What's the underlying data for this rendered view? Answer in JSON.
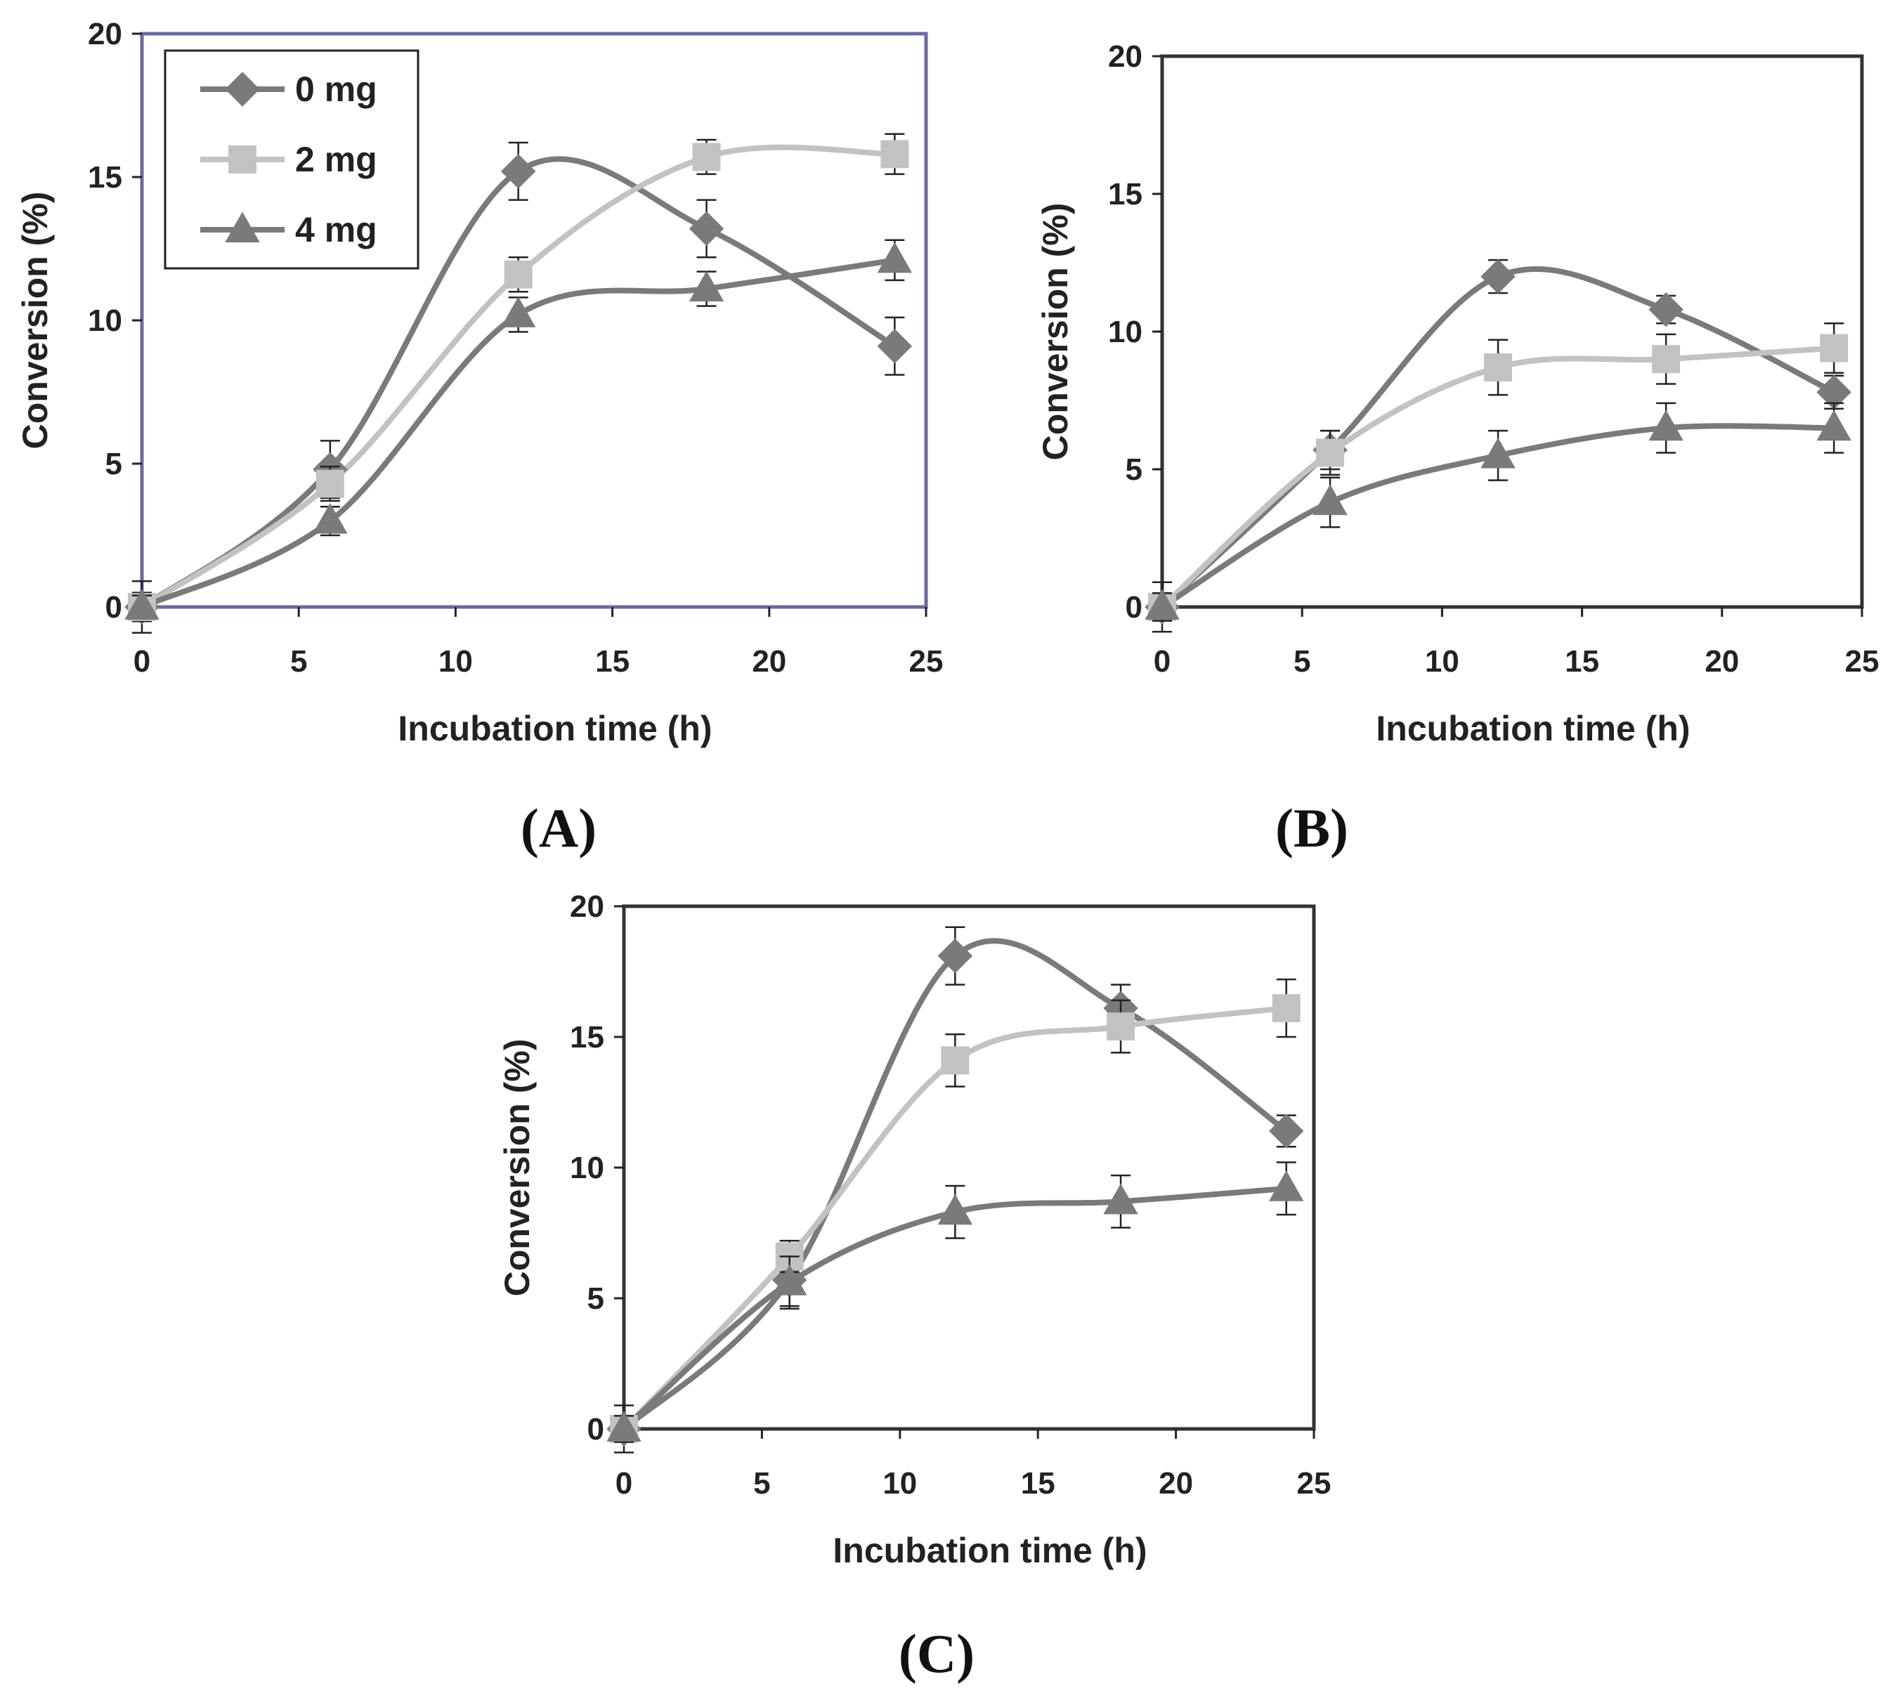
{
  "series_styles": [
    {
      "name": "0 mg",
      "marker": "diamond",
      "color": "#7a7a7a"
    },
    {
      "name": "2 mg",
      "marker": "square",
      "color": "#c2c2c2"
    },
    {
      "name": "4 mg",
      "marker": "triangle",
      "color": "#7a7a7a"
    }
  ],
  "legend": {
    "labels": [
      "0 mg",
      "2 mg",
      "4 mg"
    ],
    "placement": "top-left of panel A"
  },
  "chart_data": [
    {
      "type": "line",
      "panel_label": "(A)",
      "xlabel": "Incubation time (h)",
      "ylabel": "Conversion (%)",
      "xlim": [
        0,
        25
      ],
      "ylim": [
        0,
        20
      ],
      "xticks": [
        0,
        5,
        10,
        15,
        20,
        25
      ],
      "yticks": [
        0,
        5,
        10,
        15,
        20
      ],
      "frame_color": "#6a6aa0",
      "x": [
        0,
        6,
        12,
        18,
        24
      ],
      "series": [
        {
          "name": "0 mg",
          "values": [
            0,
            4.8,
            15.2,
            13.2,
            9.1
          ],
          "errors": [
            0.9,
            1.0,
            1.0,
            1.0,
            1.0
          ]
        },
        {
          "name": "2 mg",
          "values": [
            0,
            4.3,
            11.6,
            15.7,
            15.8
          ],
          "errors": [
            0.5,
            0.6,
            0.6,
            0.6,
            0.7
          ]
        },
        {
          "name": "4 mg",
          "values": [
            0,
            3.0,
            10.2,
            11.1,
            12.1
          ],
          "errors": [
            0.4,
            0.5,
            0.6,
            0.6,
            0.7
          ]
        }
      ]
    },
    {
      "type": "line",
      "panel_label": "(B)",
      "xlabel": "Incubation time (h)",
      "ylabel": "Conversion (%)",
      "xlim": [
        0,
        25
      ],
      "ylim": [
        0,
        20
      ],
      "xticks": [
        0,
        5,
        10,
        15,
        20,
        25
      ],
      "yticks": [
        0,
        5,
        10,
        15,
        20
      ],
      "frame_color": "#333333",
      "x": [
        0,
        6,
        12,
        18,
        24
      ],
      "series": [
        {
          "name": "0 mg",
          "values": [
            0,
            5.7,
            12.0,
            10.8,
            7.8
          ],
          "errors": [
            0.9,
            0.7,
            0.6,
            0.5,
            0.6
          ]
        },
        {
          "name": "2 mg",
          "values": [
            0,
            5.6,
            8.7,
            9.0,
            9.4
          ],
          "errors": [
            0.5,
            0.8,
            1.0,
            0.9,
            0.9
          ]
        },
        {
          "name": "4 mg",
          "values": [
            0,
            3.8,
            5.5,
            6.5,
            6.5
          ],
          "errors": [
            0.5,
            0.9,
            0.9,
            0.9,
            0.9
          ]
        }
      ]
    },
    {
      "type": "line",
      "panel_label": "(C)",
      "xlabel": "Incubation time (h)",
      "ylabel": "Conversion (%)",
      "xlim": [
        0,
        25
      ],
      "ylim": [
        0,
        20
      ],
      "xticks": [
        0,
        5,
        10,
        15,
        20,
        25
      ],
      "yticks": [
        0,
        5,
        10,
        15,
        20
      ],
      "frame_color": "#333333",
      "x": [
        0,
        6,
        12,
        18,
        24
      ],
      "series": [
        {
          "name": "0 mg",
          "values": [
            0,
            5.7,
            18.1,
            16.1,
            11.4
          ],
          "errors": [
            0.9,
            1.0,
            1.1,
            0.9,
            0.6
          ]
        },
        {
          "name": "2 mg",
          "values": [
            0,
            6.6,
            14.1,
            15.4,
            16.1
          ],
          "errors": [
            0.5,
            0.6,
            1.0,
            1.0,
            1.1
          ]
        },
        {
          "name": "4 mg",
          "values": [
            0,
            5.6,
            8.3,
            8.7,
            9.2
          ],
          "errors": [
            0.5,
            1.0,
            1.0,
            1.0,
            1.0
          ]
        }
      ]
    }
  ]
}
